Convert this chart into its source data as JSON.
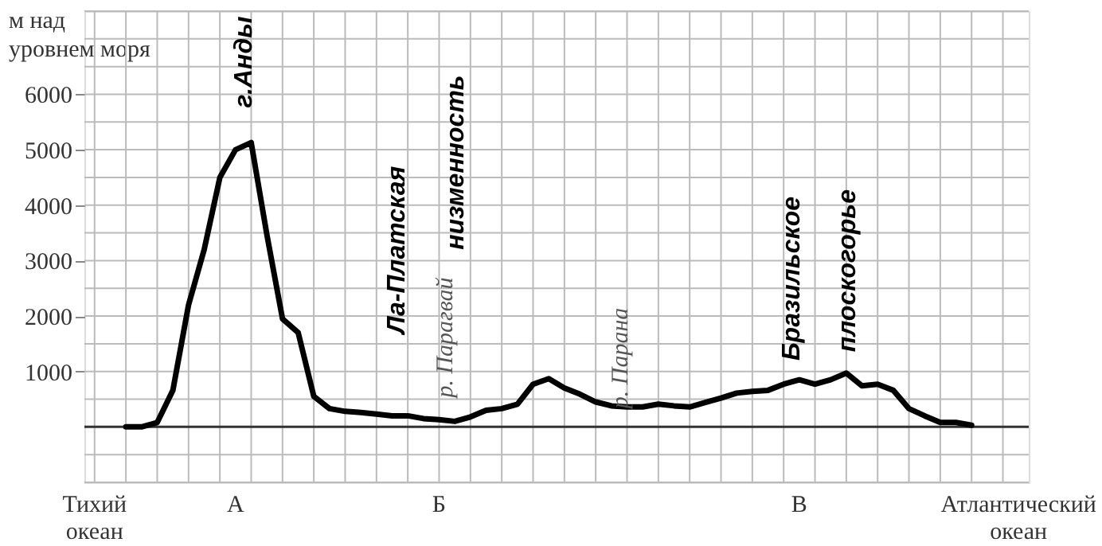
{
  "chart_data": {
    "type": "line",
    "ylabel": "м над уровнем моря",
    "categories": [
      "Тихий океан",
      null,
      null,
      null,
      null,
      null,
      null,
      null,
      null,
      "А",
      null,
      null,
      null,
      null,
      null,
      null,
      null,
      null,
      null,
      null,
      null,
      null,
      "Б",
      null,
      null,
      null,
      null,
      null,
      null,
      null,
      null,
      null,
      null,
      null,
      null,
      null,
      null,
      null,
      null,
      null,
      null,
      null,
      null,
      null,
      null,
      "В",
      null,
      null,
      null,
      null,
      null,
      null,
      null,
      null,
      null,
      null,
      null,
      null,
      null,
      "Атлантический океан"
    ],
    "series": [
      {
        "color": "#000000",
        "values": [
          null,
          null,
          0,
          0,
          80,
          660,
          2200,
          3200,
          4500,
          5000,
          5130,
          3470,
          1950,
          1700,
          550,
          330,
          280,
          260,
          230,
          200,
          200,
          150,
          130,
          100,
          180,
          300,
          330,
          410,
          770,
          870,
          700,
          590,
          450,
          380,
          360,
          360,
          410,
          380,
          360,
          440,
          520,
          610,
          640,
          660,
          770,
          850,
          770,
          850,
          970,
          740,
          770,
          660,
          330,
          200,
          80,
          80,
          30,
          null,
          null,
          null
        ]
      }
    ],
    "ylim": [
      -1000,
      7500
    ],
    "yticks": [
      1000,
      2000,
      3000,
      4000,
      5000,
      6000
    ],
    "grid": true,
    "line_style": "solid",
    "marker": "none",
    "ref_lines": [
      {
        "axis": "y",
        "value": 0
      }
    ],
    "annotations": [
      "г.Анды",
      "Ла-Платская",
      "низменность",
      "р. Парагвай",
      "р. Парана",
      "Бразильское",
      "плоскогорье"
    ]
  }
}
